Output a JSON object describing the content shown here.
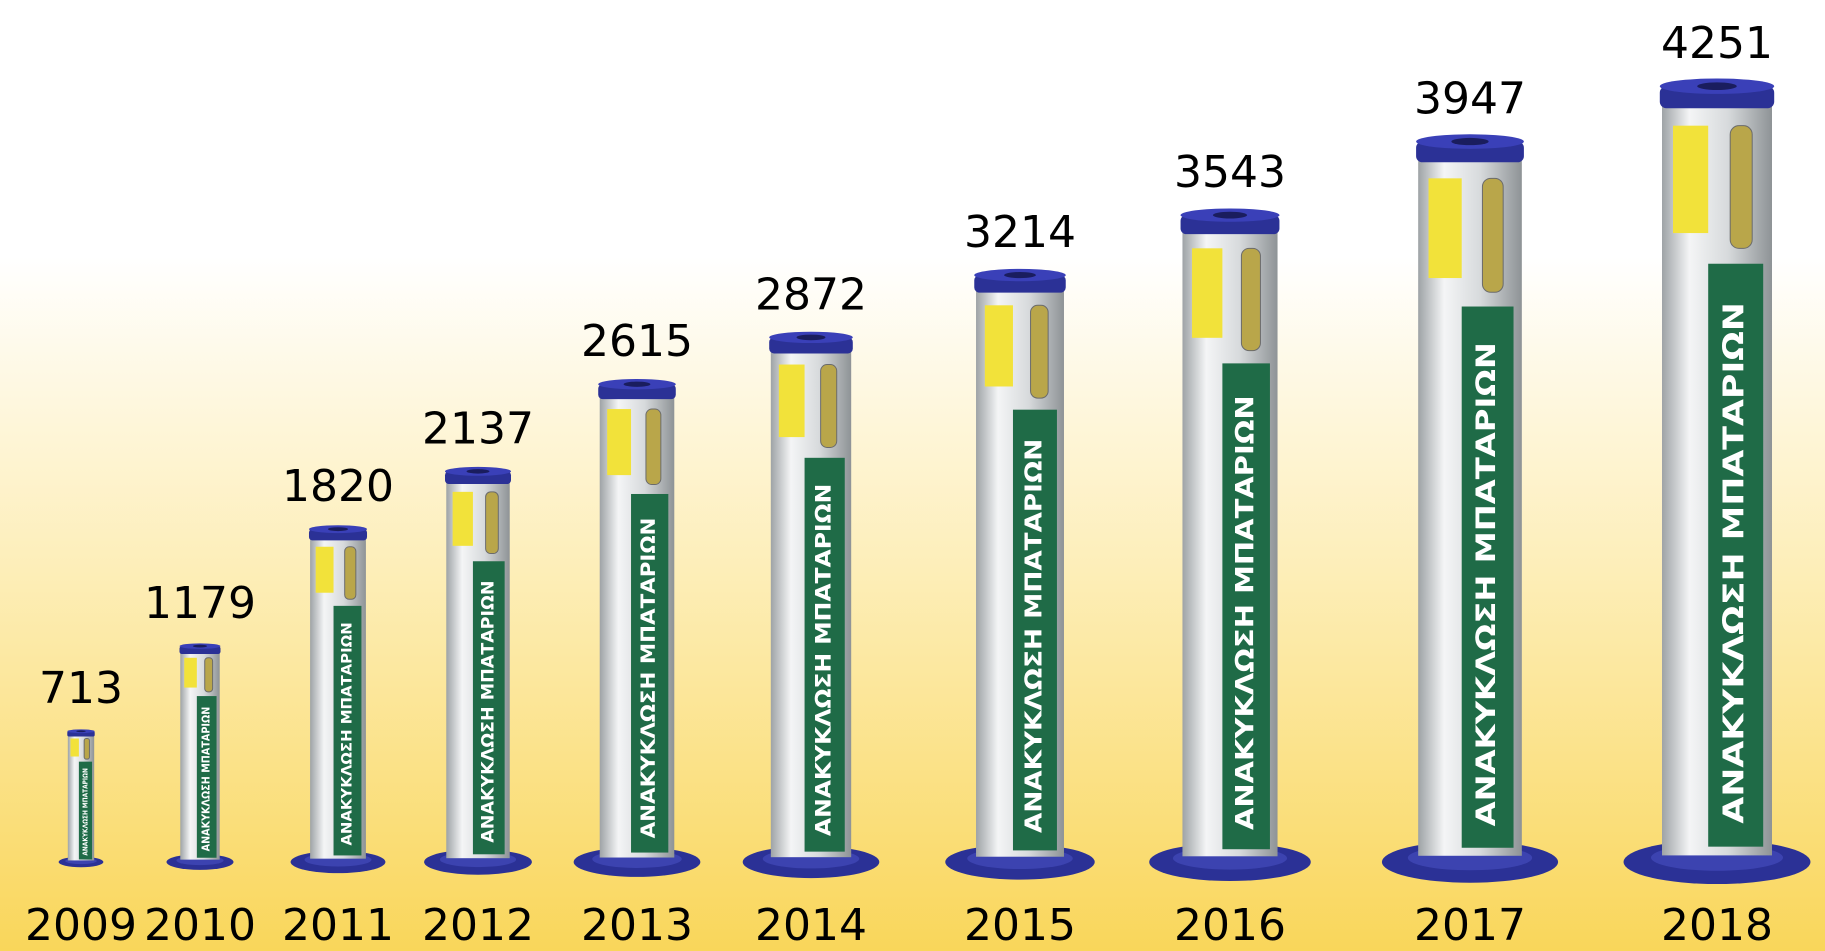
{
  "chart_data": {
    "type": "bar",
    "categories": [
      "2009",
      "2010",
      "2011",
      "2012",
      "2013",
      "2014",
      "2015",
      "2016",
      "2017",
      "2018"
    ],
    "values": [
      713,
      1179,
      1820,
      2137,
      2615,
      2872,
      3214,
      3543,
      3947,
      4251
    ],
    "tube_label": "ΑΝΑΚΥΚΛΩΣΗ ΜΠΑΤΑΡΙΩΝ",
    "color": "#2b3196"
  }
}
